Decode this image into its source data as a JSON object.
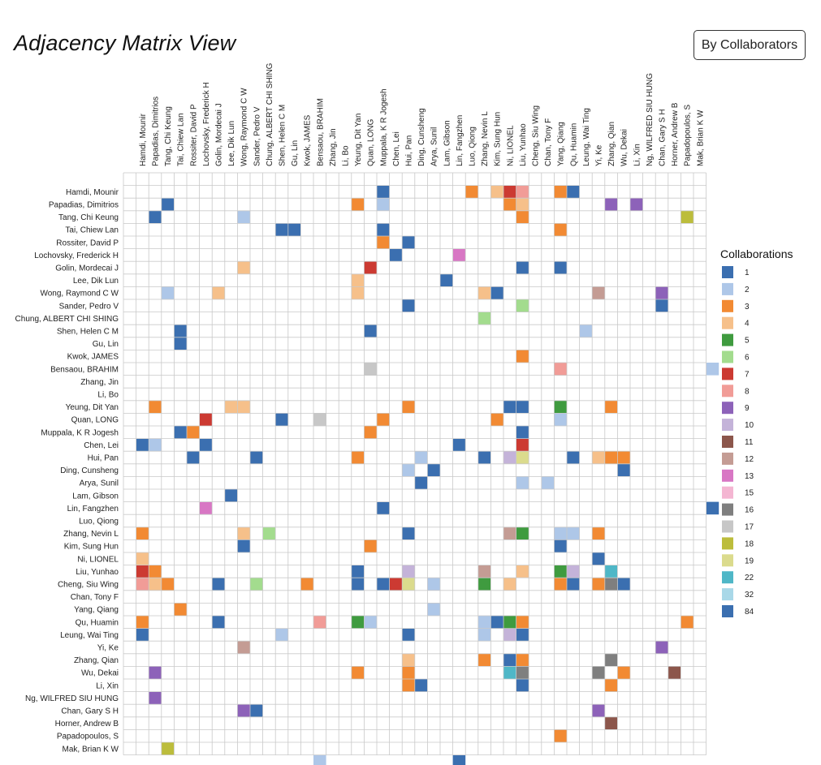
{
  "page": {
    "title": "Adjacency Matrix View",
    "order_button_label": "By Collaborators"
  },
  "chart_data": {
    "type": "heatmap",
    "title": "Adjacency Matrix View",
    "authors": [
      "Hamdi, Mounir",
      "Papadias, Dimitrios",
      "Tang, Chi Keung",
      "Tai, Chiew Lan",
      "Rossiter, David P",
      "Lochovsky, Frederick H",
      "Golin, Mordecai J",
      "Lee, Dik Lun",
      "Wong, Raymond C W",
      "Sander, Pedro V",
      "Chung, ALBERT CHI SHING",
      "Shen, Helen C M",
      "Gu, Lin",
      "Kwok, JAMES",
      "Bensaou, BRAHIM",
      "Zhang, Jin",
      "Li, Bo",
      "Yeung, Dit Yan",
      "Quan, LONG",
      "Muppala, K R Jogesh",
      "Chen, Lei",
      "Hui, Pan",
      "Ding, Cunsheng",
      "Arya, Sunil",
      "Lam, Gibson",
      "Lin, Fangzhen",
      "Luo, Qiong",
      "Zhang, Nevin L",
      "Kim, Sung Hun",
      "Ni, LIONEL",
      "Liu, Yunhao",
      "Cheng, Siu Wing",
      "Chan, Tony F",
      "Yang, Qiang",
      "Qu, Huamin",
      "Leung, Wai Ting",
      "Yi, Ke",
      "Zhang, Qian",
      "Wu, Dekai",
      "Li, Xin",
      "Ng, WILFRED SIU HUNG",
      "Chan, Gary S H",
      "Horner, Andrew B",
      "Papadopoulos, S",
      "Mak, Brian K W"
    ],
    "legend": {
      "title": "Collaborations",
      "items": [
        {
          "label": "1",
          "color": "#3b6fb0"
        },
        {
          "label": "2",
          "color": "#aec7e8"
        },
        {
          "label": "3",
          "color": "#f28a33"
        },
        {
          "label": "4",
          "color": "#f6c08a"
        },
        {
          "label": "5",
          "color": "#3f9b3f"
        },
        {
          "label": "6",
          "color": "#a3dc8e"
        },
        {
          "label": "7",
          "color": "#cc3a32"
        },
        {
          "label": "8",
          "color": "#f19c97"
        },
        {
          "label": "9",
          "color": "#8d62b9"
        },
        {
          "label": "10",
          "color": "#c4b3d9"
        },
        {
          "label": "11",
          "color": "#8c564b"
        },
        {
          "label": "12",
          "color": "#c49c94"
        },
        {
          "label": "13",
          "color": "#d877c4"
        },
        {
          "label": "15",
          "color": "#f4b6d2"
        },
        {
          "label": "16",
          "color": "#7f7f7f"
        },
        {
          "label": "17",
          "color": "#c7c7c7"
        },
        {
          "label": "18",
          "color": "#bcbd3c"
        },
        {
          "label": "19",
          "color": "#dbdb8d"
        },
        {
          "label": "22",
          "color": "#4fb7c7"
        },
        {
          "label": "32",
          "color": "#a9d8e8"
        },
        {
          "label": "84",
          "color": "#3b6fb0"
        }
      ]
    },
    "cells": [
      {
        "row": 1,
        "col": 20,
        "value": 1
      },
      {
        "row": 1,
        "col": 27,
        "value": 3
      },
      {
        "row": 1,
        "col": 29,
        "value": 4
      },
      {
        "row": 1,
        "col": 30,
        "value": 7
      },
      {
        "row": 1,
        "col": 31,
        "value": 8
      },
      {
        "row": 1,
        "col": 34,
        "value": 3
      },
      {
        "row": 1,
        "col": 35,
        "value": 1
      },
      {
        "row": 2,
        "col": 3,
        "value": 1
      },
      {
        "row": 2,
        "col": 18,
        "value": 3
      },
      {
        "row": 2,
        "col": 20,
        "value": 2
      },
      {
        "row": 2,
        "col": 30,
        "value": 3
      },
      {
        "row": 2,
        "col": 31,
        "value": 4
      },
      {
        "row": 2,
        "col": 38,
        "value": 9
      },
      {
        "row": 2,
        "col": 40,
        "value": 9
      },
      {
        "row": 3,
        "col": 2,
        "value": 1
      },
      {
        "row": 3,
        "col": 9,
        "value": 2
      },
      {
        "row": 3,
        "col": 31,
        "value": 3
      },
      {
        "row": 3,
        "col": 44,
        "value": 18
      },
      {
        "row": 4,
        "col": 12,
        "value": 1
      },
      {
        "row": 4,
        "col": 13,
        "value": 1
      },
      {
        "row": 4,
        "col": 20,
        "value": 1
      },
      {
        "row": 4,
        "col": 34,
        "value": 3
      },
      {
        "row": 5,
        "col": 20,
        "value": 3
      },
      {
        "row": 5,
        "col": 22,
        "value": 1
      },
      {
        "row": 6,
        "col": 21,
        "value": 1
      },
      {
        "row": 6,
        "col": 26,
        "value": 13
      },
      {
        "row": 7,
        "col": 9,
        "value": 4
      },
      {
        "row": 7,
        "col": 19,
        "value": 7
      },
      {
        "row": 7,
        "col": 31,
        "value": 1
      },
      {
        "row": 7,
        "col": 34,
        "value": 1
      },
      {
        "row": 8,
        "col": 18,
        "value": 4
      },
      {
        "row": 8,
        "col": 25,
        "value": 1
      },
      {
        "row": 9,
        "col": 3,
        "value": 2
      },
      {
        "row": 9,
        "col": 7,
        "value": 4
      },
      {
        "row": 9,
        "col": 18,
        "value": 4
      },
      {
        "row": 9,
        "col": 28,
        "value": 4
      },
      {
        "row": 9,
        "col": 29,
        "value": 1
      },
      {
        "row": 9,
        "col": 37,
        "value": 12
      },
      {
        "row": 9,
        "col": 42,
        "value": 9
      },
      {
        "row": 10,
        "col": 22,
        "value": 1
      },
      {
        "row": 10,
        "col": 31,
        "value": 6
      },
      {
        "row": 10,
        "col": 42,
        "value": 1
      },
      {
        "row": 11,
        "col": 28,
        "value": 6
      },
      {
        "row": 12,
        "col": 4,
        "value": 1
      },
      {
        "row": 12,
        "col": 19,
        "value": 1
      },
      {
        "row": 12,
        "col": 36,
        "value": 2
      },
      {
        "row": 13,
        "col": 4,
        "value": 1
      },
      {
        "row": 14,
        "col": 31,
        "value": 3
      },
      {
        "row": 15,
        "col": 19,
        "value": 17
      },
      {
        "row": 15,
        "col": 34,
        "value": 8
      },
      {
        "row": 15,
        "col": 46,
        "value": 2
      },
      {
        "row": 18,
        "col": 2,
        "value": 3
      },
      {
        "row": 18,
        "col": 8,
        "value": 4
      },
      {
        "row": 18,
        "col": 9,
        "value": 4
      },
      {
        "row": 18,
        "col": 22,
        "value": 3
      },
      {
        "row": 18,
        "col": 30,
        "value": 1
      },
      {
        "row": 18,
        "col": 31,
        "value": 1
      },
      {
        "row": 18,
        "col": 34,
        "value": 5
      },
      {
        "row": 18,
        "col": 38,
        "value": 3
      },
      {
        "row": 19,
        "col": 6,
        "value": 7
      },
      {
        "row": 19,
        "col": 12,
        "value": 1
      },
      {
        "row": 19,
        "col": 15,
        "value": 17
      },
      {
        "row": 19,
        "col": 20,
        "value": 3
      },
      {
        "row": 19,
        "col": 29,
        "value": 3
      },
      {
        "row": 19,
        "col": 34,
        "value": 2
      },
      {
        "row": 20,
        "col": 4,
        "value": 1
      },
      {
        "row": 20,
        "col": 5,
        "value": 3
      },
      {
        "row": 20,
        "col": 19,
        "value": 3
      },
      {
        "row": 20,
        "col": 31,
        "value": 1
      },
      {
        "row": 21,
        "col": 1,
        "value": 1
      },
      {
        "row": 21,
        "col": 2,
        "value": 2
      },
      {
        "row": 21,
        "col": 6,
        "value": 1
      },
      {
        "row": 21,
        "col": 26,
        "value": 1
      },
      {
        "row": 21,
        "col": 31,
        "value": 7
      },
      {
        "row": 22,
        "col": 5,
        "value": 1
      },
      {
        "row": 22,
        "col": 10,
        "value": 1
      },
      {
        "row": 22,
        "col": 18,
        "value": 3
      },
      {
        "row": 22,
        "col": 23,
        "value": 2
      },
      {
        "row": 22,
        "col": 28,
        "value": 1
      },
      {
        "row": 22,
        "col": 30,
        "value": 10
      },
      {
        "row": 22,
        "col": 31,
        "value": 19
      },
      {
        "row": 22,
        "col": 35,
        "value": 1
      },
      {
        "row": 22,
        "col": 37,
        "value": 4
      },
      {
        "row": 22,
        "col": 38,
        "value": 3
      },
      {
        "row": 22,
        "col": 39,
        "value": 3
      },
      {
        "row": 23,
        "col": 22,
        "value": 2
      },
      {
        "row": 23,
        "col": 24,
        "value": 1
      },
      {
        "row": 23,
        "col": 39,
        "value": 1
      },
      {
        "row": 24,
        "col": 23,
        "value": 1
      },
      {
        "row": 24,
        "col": 31,
        "value": 2
      },
      {
        "row": 24,
        "col": 33,
        "value": 2
      },
      {
        "row": 25,
        "col": 8,
        "value": 1
      },
      {
        "row": 26,
        "col": 6,
        "value": 13
      },
      {
        "row": 26,
        "col": 20,
        "value": 1
      },
      {
        "row": 26,
        "col": 46,
        "value": 1
      },
      {
        "row": 28,
        "col": 1,
        "value": 3
      },
      {
        "row": 28,
        "col": 9,
        "value": 4
      },
      {
        "row": 28,
        "col": 11,
        "value": 6
      },
      {
        "row": 28,
        "col": 22,
        "value": 1
      },
      {
        "row": 28,
        "col": 30,
        "value": 12
      },
      {
        "row": 28,
        "col": 31,
        "value": 5
      },
      {
        "row": 28,
        "col": 34,
        "value": 2
      },
      {
        "row": 28,
        "col": 35,
        "value": 2
      },
      {
        "row": 28,
        "col": 37,
        "value": 3
      },
      {
        "row": 29,
        "col": 9,
        "value": 1
      },
      {
        "row": 29,
        "col": 19,
        "value": 3
      },
      {
        "row": 29,
        "col": 34,
        "value": 1
      },
      {
        "row": 30,
        "col": 1,
        "value": 4
      },
      {
        "row": 30,
        "col": 37,
        "value": 1
      },
      {
        "row": 31,
        "col": 1,
        "value": 7
      },
      {
        "row": 31,
        "col": 2,
        "value": 3
      },
      {
        "row": 31,
        "col": 18,
        "value": 1
      },
      {
        "row": 31,
        "col": 22,
        "value": 10
      },
      {
        "row": 31,
        "col": 28,
        "value": 12
      },
      {
        "row": 31,
        "col": 31,
        "value": 4
      },
      {
        "row": 31,
        "col": 34,
        "value": 5
      },
      {
        "row": 31,
        "col": 35,
        "value": 10
      },
      {
        "row": 31,
        "col": 38,
        "value": 22
      },
      {
        "row": 32,
        "col": 1,
        "value": 8
      },
      {
        "row": 32,
        "col": 2,
        "value": 4
      },
      {
        "row": 32,
        "col": 3,
        "value": 3
      },
      {
        "row": 32,
        "col": 7,
        "value": 1
      },
      {
        "row": 32,
        "col": 10,
        "value": 6
      },
      {
        "row": 32,
        "col": 14,
        "value": 3
      },
      {
        "row": 32,
        "col": 18,
        "value": 1
      },
      {
        "row": 32,
        "col": 20,
        "value": 1
      },
      {
        "row": 32,
        "col": 21,
        "value": 7
      },
      {
        "row": 32,
        "col": 22,
        "value": 19
      },
      {
        "row": 32,
        "col": 24,
        "value": 2
      },
      {
        "row": 32,
        "col": 28,
        "value": 5
      },
      {
        "row": 32,
        "col": 30,
        "value": 4
      },
      {
        "row": 32,
        "col": 34,
        "value": 3
      },
      {
        "row": 32,
        "col": 35,
        "value": 1
      },
      {
        "row": 32,
        "col": 37,
        "value": 3
      },
      {
        "row": 32,
        "col": 38,
        "value": 16
      },
      {
        "row": 32,
        "col": 39,
        "value": 1
      },
      {
        "row": 34,
        "col": 4,
        "value": 3
      },
      {
        "row": 34,
        "col": 24,
        "value": 2
      },
      {
        "row": 35,
        "col": 1,
        "value": 3
      },
      {
        "row": 35,
        "col": 7,
        "value": 1
      },
      {
        "row": 35,
        "col": 15,
        "value": 8
      },
      {
        "row": 35,
        "col": 18,
        "value": 5
      },
      {
        "row": 35,
        "col": 19,
        "value": 2
      },
      {
        "row": 35,
        "col": 28,
        "value": 2
      },
      {
        "row": 35,
        "col": 29,
        "value": 1
      },
      {
        "row": 35,
        "col": 30,
        "value": 5
      },
      {
        "row": 35,
        "col": 31,
        "value": 3
      },
      {
        "row": 35,
        "col": 44,
        "value": 3
      },
      {
        "row": 36,
        "col": 1,
        "value": 1
      },
      {
        "row": 36,
        "col": 12,
        "value": 2
      },
      {
        "row": 36,
        "col": 22,
        "value": 1
      },
      {
        "row": 36,
        "col": 28,
        "value": 2
      },
      {
        "row": 36,
        "col": 30,
        "value": 10
      },
      {
        "row": 36,
        "col": 31,
        "value": 1
      },
      {
        "row": 37,
        "col": 9,
        "value": 12
      },
      {
        "row": 37,
        "col": 42,
        "value": 9
      },
      {
        "row": 38,
        "col": 22,
        "value": 4
      },
      {
        "row": 38,
        "col": 28,
        "value": 3
      },
      {
        "row": 38,
        "col": 30,
        "value": 1
      },
      {
        "row": 38,
        "col": 31,
        "value": 3
      },
      {
        "row": 38,
        "col": 38,
        "value": 16
      },
      {
        "row": 39,
        "col": 2,
        "value": 9
      },
      {
        "row": 39,
        "col": 18,
        "value": 3
      },
      {
        "row": 39,
        "col": 22,
        "value": 3
      },
      {
        "row": 39,
        "col": 30,
        "value": 22
      },
      {
        "row": 39,
        "col": 31,
        "value": 16
      },
      {
        "row": 39,
        "col": 37,
        "value": 16
      },
      {
        "row": 39,
        "col": 39,
        "value": 3
      },
      {
        "row": 39,
        "col": 43,
        "value": 11
      },
      {
        "row": 40,
        "col": 22,
        "value": 3
      },
      {
        "row": 40,
        "col": 23,
        "value": 1
      },
      {
        "row": 40,
        "col": 31,
        "value": 1
      },
      {
        "row": 40,
        "col": 38,
        "value": 3
      },
      {
        "row": 41,
        "col": 2,
        "value": 9
      },
      {
        "row": 42,
        "col": 9,
        "value": 9
      },
      {
        "row": 42,
        "col": 10,
        "value": 1
      },
      {
        "row": 42,
        "col": 37,
        "value": 9
      },
      {
        "row": 43,
        "col": 38,
        "value": 11
      },
      {
        "row": 44,
        "col": 34,
        "value": 3
      },
      {
        "row": 45,
        "col": 3,
        "value": 18
      },
      {
        "row": 46,
        "col": 15,
        "value": 2
      },
      {
        "row": 46,
        "col": 26,
        "value": 1
      }
    ]
  }
}
